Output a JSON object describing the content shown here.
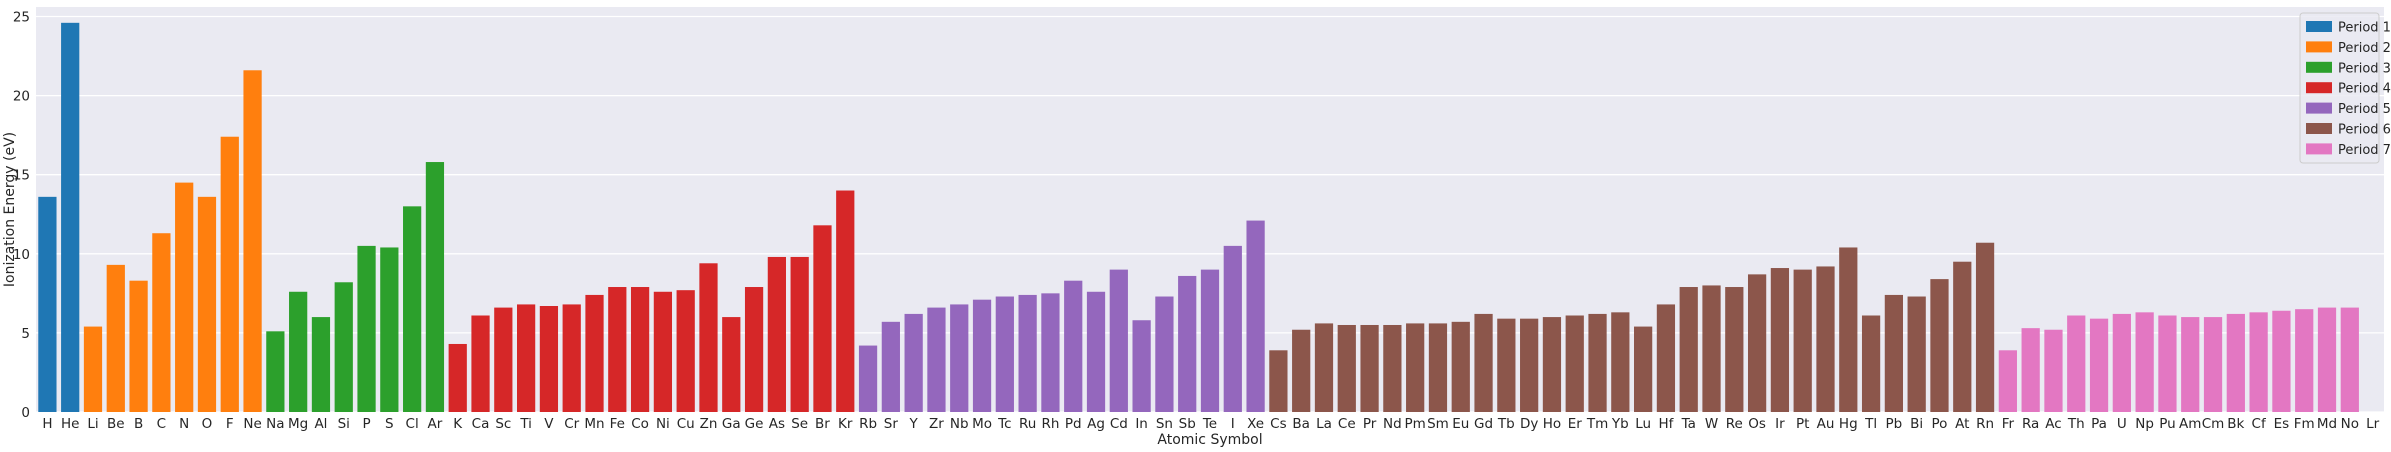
{
  "chart_data": {
    "type": "bar",
    "title": "",
    "xlabel": "Atomic Symbol",
    "ylabel": "Ionization Energy (eV)",
    "ylim": [
      0,
      25.6
    ],
    "yticks": [
      0,
      5,
      10,
      15,
      20,
      25
    ],
    "grid": true,
    "legend_position": "top-right",
    "colors": {
      "Period 1": "#1f77b4",
      "Period 2": "#ff7f0e",
      "Period 3": "#2ca02c",
      "Period 4": "#d62728",
      "Period 5": "#9467bd",
      "Period 6": "#8c564b",
      "Period 7": "#e377c2"
    },
    "legend": [
      "Period 1",
      "Period 2",
      "Period 3",
      "Period 4",
      "Period 5",
      "Period 6",
      "Period 7"
    ],
    "categories": [
      "H",
      "He",
      "Li",
      "Be",
      "B",
      "C",
      "N",
      "O",
      "F",
      "Ne",
      "Na",
      "Mg",
      "Al",
      "Si",
      "P",
      "S",
      "Cl",
      "Ar",
      "K",
      "Ca",
      "Sc",
      "Ti",
      "V",
      "Cr",
      "Mn",
      "Fe",
      "Co",
      "Ni",
      "Cu",
      "Zn",
      "Ga",
      "Ge",
      "As",
      "Se",
      "Br",
      "Kr",
      "Rb",
      "Sr",
      "Y",
      "Zr",
      "Nb",
      "Mo",
      "Tc",
      "Ru",
      "Rh",
      "Pd",
      "Ag",
      "Cd",
      "In",
      "Sn",
      "Sb",
      "Te",
      "I",
      "Xe",
      "Cs",
      "Ba",
      "La",
      "Ce",
      "Pr",
      "Nd",
      "Pm",
      "Sm",
      "Eu",
      "Gd",
      "Tb",
      "Dy",
      "Ho",
      "Er",
      "Tm",
      "Yb",
      "Lu",
      "Hf",
      "Ta",
      "W",
      "Re",
      "Os",
      "Ir",
      "Pt",
      "Au",
      "Hg",
      "Tl",
      "Pb",
      "Bi",
      "Po",
      "At",
      "Rn",
      "Fr",
      "Ra",
      "Ac",
      "Th",
      "Pa",
      "U",
      "Np",
      "Pu",
      "Am",
      "Cm",
      "Bk",
      "Cf",
      "Es",
      "Fm",
      "Md",
      "No",
      "Lr"
    ],
    "values": [
      13.6,
      24.6,
      5.4,
      9.3,
      8.3,
      11.3,
      14.5,
      13.6,
      17.4,
      21.6,
      5.1,
      7.6,
      6.0,
      8.2,
      10.5,
      10.4,
      13.0,
      15.8,
      4.3,
      6.1,
      6.6,
      6.8,
      6.7,
      6.8,
      7.4,
      7.9,
      7.9,
      7.6,
      7.7,
      9.4,
      6.0,
      7.9,
      9.8,
      9.8,
      11.8,
      14.0,
      4.2,
      5.7,
      6.2,
      6.6,
      6.8,
      7.1,
      7.3,
      7.4,
      7.5,
      8.3,
      7.6,
      9.0,
      5.8,
      7.3,
      8.6,
      9.0,
      10.5,
      12.1,
      3.9,
      5.2,
      5.6,
      5.5,
      5.5,
      5.5,
      5.6,
      5.6,
      5.7,
      6.2,
      5.9,
      5.9,
      6.0,
      6.1,
      6.2,
      6.3,
      5.4,
      6.8,
      7.9,
      8.0,
      7.9,
      8.7,
      9.1,
      9.0,
      9.2,
      10.4,
      6.1,
      7.4,
      7.3,
      8.4,
      9.5,
      10.7,
      3.9,
      5.3,
      5.2,
      6.1,
      5.9,
      6.2,
      6.3,
      6.1,
      6.0,
      6.0,
      6.2,
      6.3,
      6.4,
      6.5,
      6.6,
      6.6,
      0
    ],
    "periods": [
      1,
      1,
      2,
      2,
      2,
      2,
      2,
      2,
      2,
      2,
      3,
      3,
      3,
      3,
      3,
      3,
      3,
      3,
      4,
      4,
      4,
      4,
      4,
      4,
      4,
      4,
      4,
      4,
      4,
      4,
      4,
      4,
      4,
      4,
      4,
      4,
      5,
      5,
      5,
      5,
      5,
      5,
      5,
      5,
      5,
      5,
      5,
      5,
      5,
      5,
      5,
      5,
      5,
      5,
      6,
      6,
      6,
      6,
      6,
      6,
      6,
      6,
      6,
      6,
      6,
      6,
      6,
      6,
      6,
      6,
      6,
      6,
      6,
      6,
      6,
      6,
      6,
      6,
      6,
      6,
      6,
      6,
      6,
      6,
      6,
      6,
      7,
      7,
      7,
      7,
      7,
      7,
      7,
      7,
      7,
      7,
      7,
      7,
      7,
      7,
      7,
      7,
      7
    ]
  }
}
